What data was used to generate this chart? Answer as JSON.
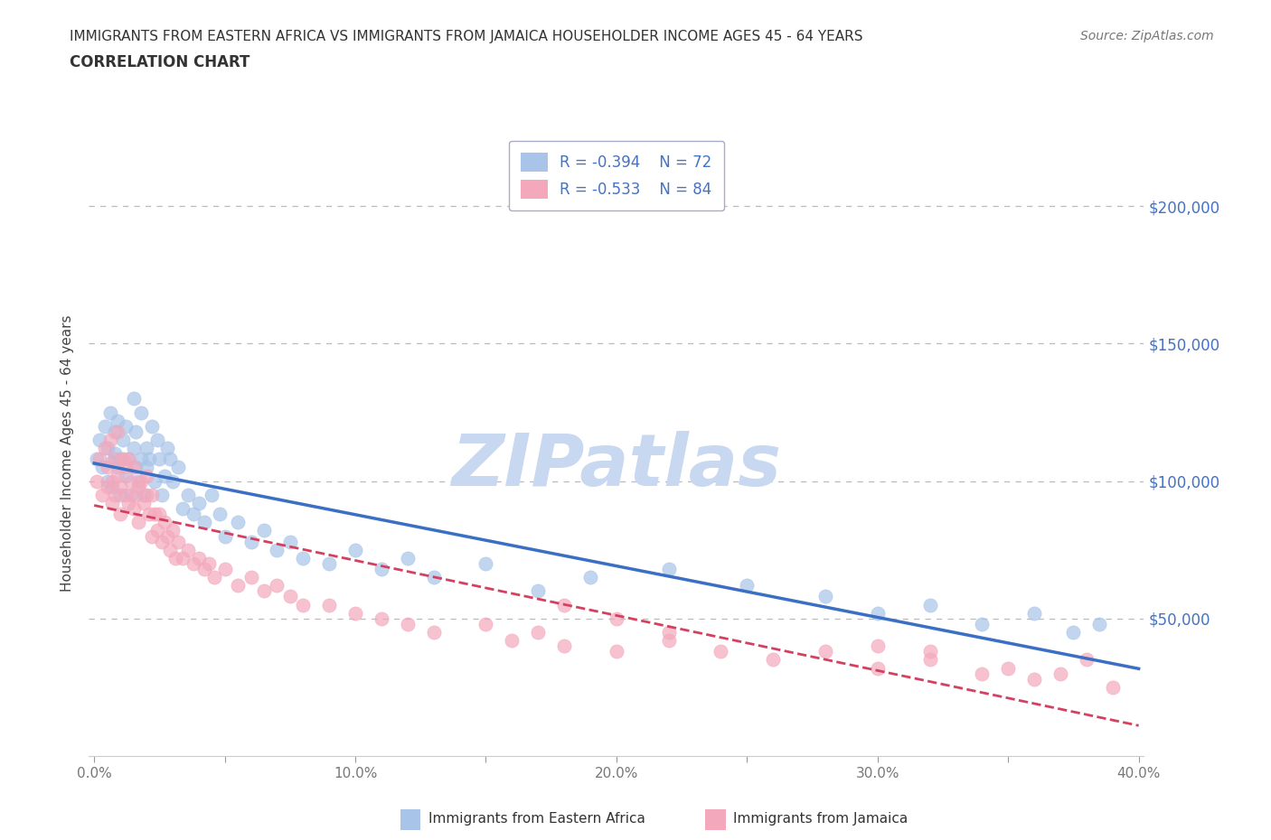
{
  "title_line1": "IMMIGRANTS FROM EASTERN AFRICA VS IMMIGRANTS FROM JAMAICA HOUSEHOLDER INCOME AGES 45 - 64 YEARS",
  "title_line2": "CORRELATION CHART",
  "source": "Source: ZipAtlas.com",
  "ylabel": "Householder Income Ages 45 - 64 years",
  "xlim": [
    -0.002,
    0.402
  ],
  "ylim": [
    0,
    220000
  ],
  "yticks": [
    0,
    50000,
    100000,
    150000,
    200000
  ],
  "ytick_labels": [
    "",
    "$50,000",
    "$100,000",
    "$150,000",
    "$200,000"
  ],
  "xticks": [
    0.0,
    0.05,
    0.1,
    0.15,
    0.2,
    0.25,
    0.3,
    0.35,
    0.4
  ],
  "xtick_labels": [
    "0.0%",
    "",
    "10.0%",
    "",
    "20.0%",
    "",
    "30.0%",
    "",
    "40.0%"
  ],
  "blue_R": "-0.394",
  "blue_N": "72",
  "pink_R": "-0.533",
  "pink_N": "84",
  "blue_color": "#a8c4e8",
  "pink_color": "#f4a8bc",
  "line_blue": "#3a6fc4",
  "line_pink": "#d44060",
  "watermark": "ZIPatlas",
  "watermark_color": "#c8d8f0",
  "blue_scatter_x": [
    0.001,
    0.002,
    0.003,
    0.004,
    0.005,
    0.005,
    0.006,
    0.007,
    0.007,
    0.008,
    0.008,
    0.009,
    0.009,
    0.01,
    0.01,
    0.011,
    0.012,
    0.012,
    0.013,
    0.014,
    0.015,
    0.015,
    0.016,
    0.016,
    0.017,
    0.018,
    0.018,
    0.019,
    0.02,
    0.02,
    0.021,
    0.022,
    0.023,
    0.024,
    0.025,
    0.026,
    0.027,
    0.028,
    0.029,
    0.03,
    0.032,
    0.034,
    0.036,
    0.038,
    0.04,
    0.042,
    0.045,
    0.048,
    0.05,
    0.055,
    0.06,
    0.065,
    0.07,
    0.075,
    0.08,
    0.09,
    0.1,
    0.11,
    0.12,
    0.13,
    0.15,
    0.17,
    0.19,
    0.22,
    0.25,
    0.28,
    0.3,
    0.32,
    0.34,
    0.36,
    0.375,
    0.385
  ],
  "blue_scatter_y": [
    108000,
    115000,
    105000,
    120000,
    100000,
    112000,
    125000,
    107000,
    98000,
    110000,
    118000,
    105000,
    122000,
    108000,
    95000,
    115000,
    102000,
    120000,
    108000,
    95000,
    112000,
    130000,
    105000,
    118000,
    100000,
    108000,
    125000,
    95000,
    112000,
    105000,
    108000,
    120000,
    100000,
    115000,
    108000,
    95000,
    102000,
    112000,
    108000,
    100000,
    105000,
    90000,
    95000,
    88000,
    92000,
    85000,
    95000,
    88000,
    80000,
    85000,
    78000,
    82000,
    75000,
    78000,
    72000,
    70000,
    75000,
    68000,
    72000,
    65000,
    70000,
    60000,
    65000,
    68000,
    62000,
    58000,
    52000,
    55000,
    48000,
    52000,
    45000,
    48000
  ],
  "pink_scatter_x": [
    0.001,
    0.002,
    0.003,
    0.004,
    0.005,
    0.005,
    0.006,
    0.007,
    0.007,
    0.008,
    0.008,
    0.009,
    0.009,
    0.01,
    0.01,
    0.011,
    0.012,
    0.012,
    0.013,
    0.013,
    0.014,
    0.015,
    0.015,
    0.016,
    0.017,
    0.017,
    0.018,
    0.019,
    0.02,
    0.02,
    0.021,
    0.022,
    0.022,
    0.023,
    0.024,
    0.025,
    0.026,
    0.027,
    0.028,
    0.029,
    0.03,
    0.031,
    0.032,
    0.034,
    0.036,
    0.038,
    0.04,
    0.042,
    0.044,
    0.046,
    0.05,
    0.055,
    0.06,
    0.065,
    0.07,
    0.075,
    0.08,
    0.09,
    0.1,
    0.11,
    0.12,
    0.13,
    0.15,
    0.16,
    0.17,
    0.18,
    0.2,
    0.22,
    0.24,
    0.26,
    0.28,
    0.3,
    0.32,
    0.34,
    0.35,
    0.36,
    0.37,
    0.38,
    0.39,
    0.3,
    0.32,
    0.18,
    0.2,
    0.22
  ],
  "pink_scatter_y": [
    100000,
    108000,
    95000,
    112000,
    98000,
    105000,
    115000,
    100000,
    92000,
    108000,
    95000,
    102000,
    118000,
    98000,
    88000,
    108000,
    95000,
    105000,
    92000,
    108000,
    100000,
    105000,
    90000,
    95000,
    98000,
    85000,
    100000,
    92000,
    95000,
    102000,
    88000,
    95000,
    80000,
    88000,
    82000,
    88000,
    78000,
    85000,
    80000,
    75000,
    82000,
    72000,
    78000,
    72000,
    75000,
    70000,
    72000,
    68000,
    70000,
    65000,
    68000,
    62000,
    65000,
    60000,
    62000,
    58000,
    55000,
    55000,
    52000,
    50000,
    48000,
    45000,
    48000,
    42000,
    45000,
    40000,
    38000,
    42000,
    38000,
    35000,
    38000,
    32000,
    35000,
    30000,
    32000,
    28000,
    30000,
    35000,
    25000,
    40000,
    38000,
    55000,
    50000,
    45000
  ]
}
